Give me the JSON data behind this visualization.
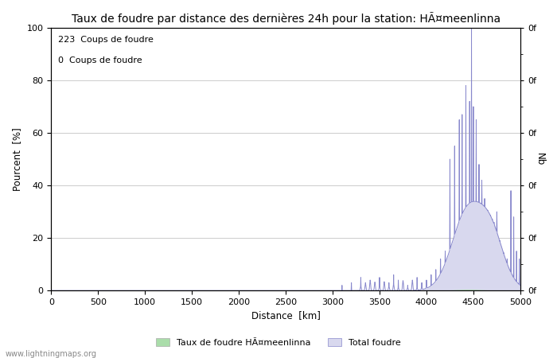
{
  "title": "Taux de foudre par distance des dernières 24h pour la station: HÃ¤meenlinna",
  "xlabel": "Distance  [km]",
  "ylabel_left": "Pourcent  [%]",
  "ylabel_right": "Nb",
  "annotation_line1": "223  Coups de foudre",
  "annotation_line2": "0  Coups de foudre",
  "legend_label1": "Taux de foudre HÃ¤meenlinna",
  "legend_label2": "Total foudre",
  "watermark": "www.lightningmaps.org",
  "xlim": [
    0,
    5000
  ],
  "ylim": [
    0,
    100
  ],
  "xticks": [
    0,
    500,
    1000,
    1500,
    2000,
    2500,
    3000,
    3500,
    4000,
    4500,
    5000
  ],
  "yticks_left": [
    0,
    20,
    40,
    60,
    80,
    100
  ],
  "right_ytick_label": "0f",
  "color_blue_line": "#8888cc",
  "color_blue_fill": "#d8d8ee",
  "color_green_fill": "#aaddaa",
  "background_color": "#ffffff",
  "title_fontsize": 10,
  "axis_fontsize": 8.5,
  "tick_fontsize": 8,
  "figwidth": 7.0,
  "figheight": 4.5,
  "dpi": 100
}
